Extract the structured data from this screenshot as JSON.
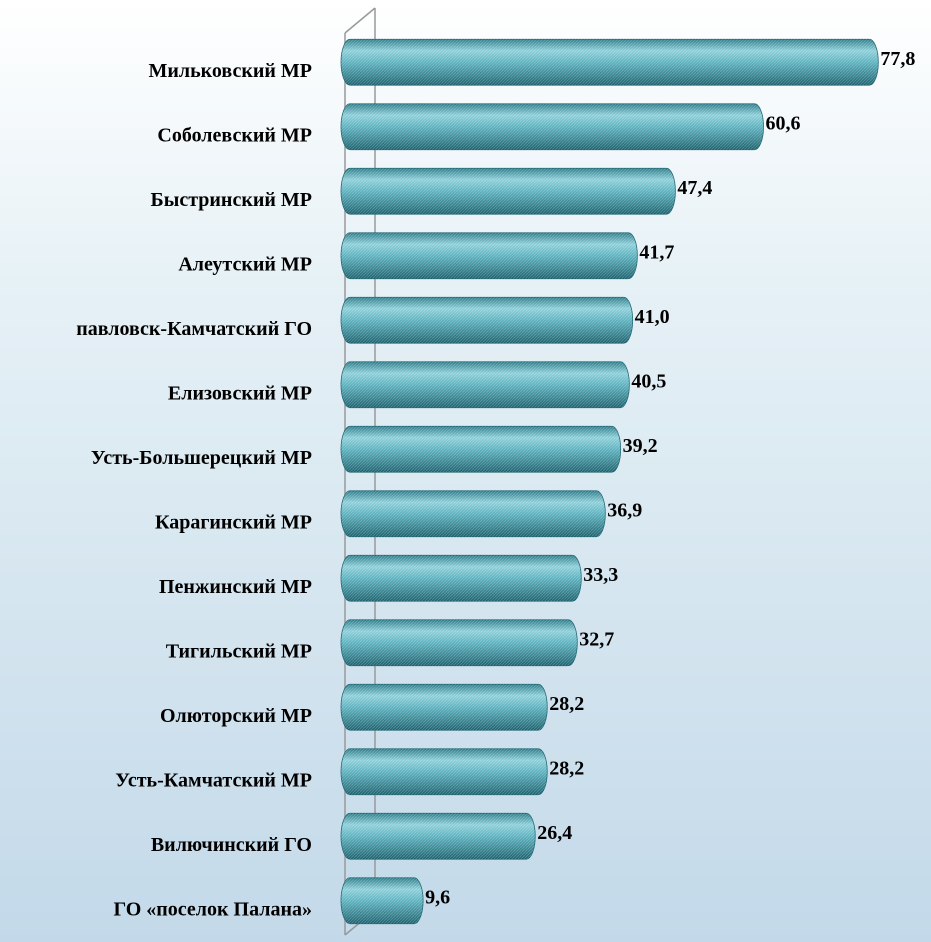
{
  "chart_data": {
    "type": "bar",
    "orientation": "horizontal",
    "categories": [
      "Мильковский МР",
      "Соболевский МР",
      "Быстринский МР",
      "Алеутский МР",
      "павловск-Камчатский ГО",
      "Елизовский МР",
      "Усть-Большерецкий МР",
      "Карагинский МР",
      "Пенжинский МР",
      "Тигильский МР",
      "Олюторский МР",
      "Усть-Камчатский МР",
      "Вилючинский ГО",
      "ГО «поселок Палана»"
    ],
    "values": [
      77.8,
      60.6,
      47.4,
      41.7,
      41.0,
      40.5,
      39.2,
      36.9,
      33.3,
      32.7,
      28.2,
      28.2,
      26.4,
      9.6
    ],
    "value_labels": [
      "77,8",
      "60,6",
      "47,4",
      "41,7",
      "41,0",
      "40,5",
      "39,2",
      "36,9",
      "33,3",
      "32,7",
      "28,2",
      "28,2",
      "26,4",
      "9,6"
    ],
    "color": "#3d9caa",
    "xlim": [
      0,
      80
    ]
  }
}
